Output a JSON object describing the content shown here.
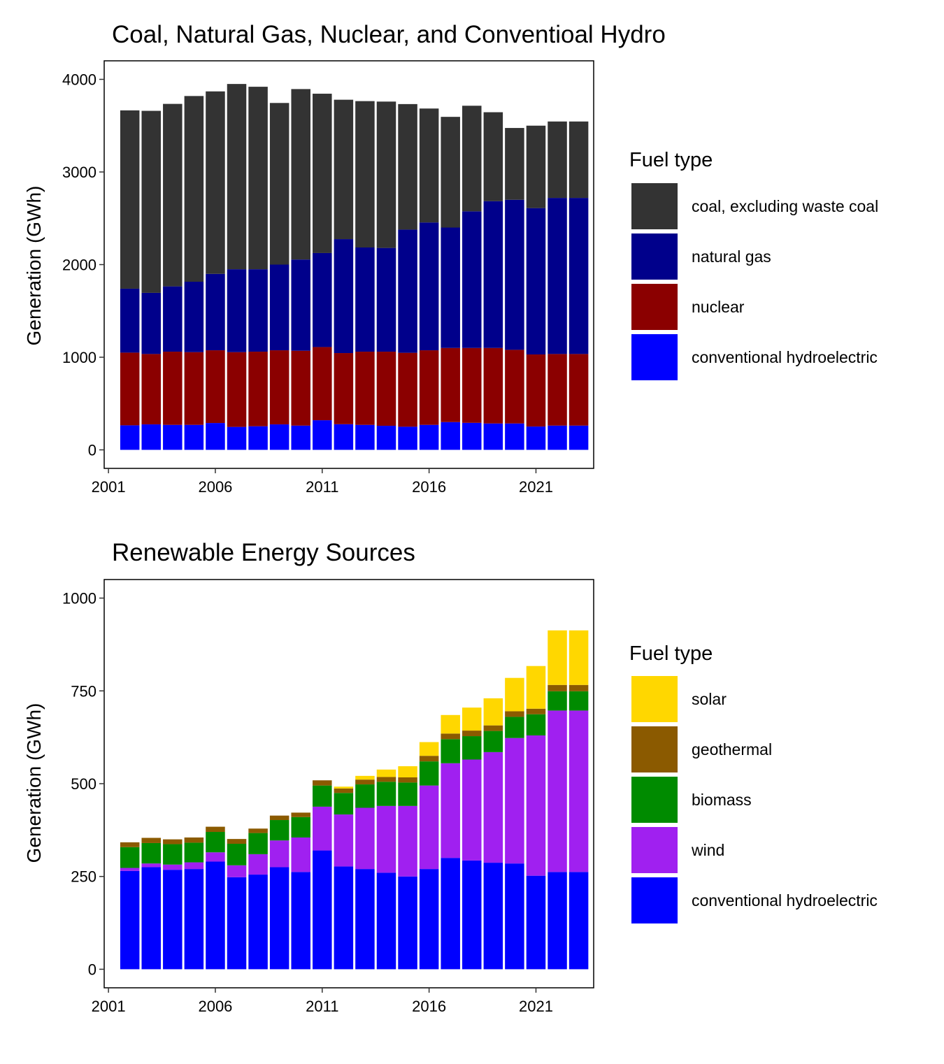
{
  "chart_data": [
    {
      "type": "bar",
      "stacked": true,
      "title": "Coal, Natural Gas, Nuclear, and Conventioal Hydro",
      "xlabel": "",
      "ylabel": "Generation (GWh)",
      "ylim": [
        -200,
        4200
      ],
      "xlim": [
        2000.8,
        2023.7
      ],
      "x": [
        2002,
        2003,
        2004,
        2005,
        2006,
        2007,
        2008,
        2009,
        2010,
        2011,
        2012,
        2013,
        2014,
        2015,
        2016,
        2017,
        2018,
        2019,
        2020,
        2021,
        2022,
        2023
      ],
      "x_ticks": [
        2001,
        2006,
        2011,
        2016,
        2021
      ],
      "x_tick_labels": [
        "2001",
        "2006",
        "2011",
        "2016",
        "2021"
      ],
      "y_ticks": [
        0,
        1000,
        2000,
        3000,
        4000
      ],
      "y_tick_labels": [
        "0",
        "1000",
        "2000",
        "3000",
        "4000"
      ],
      "grid": false,
      "legend_title": "Fuel type",
      "legend_position": "right",
      "stack_order": [
        "conventional hydroelectric",
        "nuclear",
        "natural gas",
        "coal, excluding waste coal"
      ],
      "legend_order": [
        "coal, excluding waste coal",
        "natural gas",
        "nuclear",
        "conventional hydroelectric"
      ],
      "series": [
        {
          "name": "conventional hydroelectric",
          "color": "#0000FF",
          "values": [
            265,
            275,
            270,
            270,
            290,
            248,
            255,
            275,
            262,
            320,
            277,
            270,
            260,
            250,
            270,
            300,
            292,
            285,
            285,
            252,
            262,
            262
          ]
        },
        {
          "name": "nuclear",
          "color": "#8B0000",
          "values": [
            785,
            760,
            790,
            785,
            785,
            807,
            805,
            800,
            808,
            790,
            768,
            790,
            800,
            798,
            805,
            800,
            808,
            815,
            795,
            778,
            773,
            773
          ]
        },
        {
          "name": "natural gas",
          "color": "#00008B",
          "values": [
            690,
            660,
            705,
            760,
            825,
            895,
            890,
            925,
            985,
            1015,
            1230,
            1125,
            1120,
            1330,
            1380,
            1300,
            1475,
            1585,
            1620,
            1580,
            1685,
            1685
          ]
        },
        {
          "name": "coal, excluding waste coal",
          "color": "#333333",
          "values": [
            1925,
            1965,
            1970,
            2005,
            1970,
            2000,
            1970,
            1745,
            1840,
            1720,
            1505,
            1580,
            1580,
            1355,
            1230,
            1195,
            1140,
            960,
            775,
            890,
            825,
            825
          ]
        }
      ]
    },
    {
      "type": "bar",
      "stacked": true,
      "title": "Renewable Energy Sources",
      "xlabel": "",
      "ylabel": "Generation (GWh)",
      "ylim": [
        -50,
        1050
      ],
      "xlim": [
        2000.8,
        2023.7
      ],
      "x": [
        2002,
        2003,
        2004,
        2005,
        2006,
        2007,
        2008,
        2009,
        2010,
        2011,
        2012,
        2013,
        2014,
        2015,
        2016,
        2017,
        2018,
        2019,
        2020,
        2021,
        2022,
        2023
      ],
      "x_ticks": [
        2001,
        2006,
        2011,
        2016,
        2021
      ],
      "x_tick_labels": [
        "2001",
        "2006",
        "2011",
        "2016",
        "2021"
      ],
      "y_ticks": [
        0,
        250,
        500,
        750,
        1000
      ],
      "y_tick_labels": [
        "0",
        "250",
        "500",
        "750",
        "1000"
      ],
      "grid": false,
      "legend_title": "Fuel type",
      "legend_position": "right",
      "stack_order": [
        "conventional hydroelectric",
        "wind",
        "biomass",
        "geothermal",
        "solar"
      ],
      "legend_order": [
        "solar",
        "geothermal",
        "biomass",
        "wind",
        "conventional hydroelectric"
      ],
      "series": [
        {
          "name": "conventional hydroelectric",
          "color": "#0000FF",
          "values": [
            265,
            275,
            268,
            270,
            290,
            248,
            255,
            275,
            262,
            320,
            277,
            270,
            260,
            250,
            270,
            300,
            293,
            287,
            285,
            252,
            262,
            262
          ]
        },
        {
          "name": "wind",
          "color": "#A020F0",
          "values": [
            8,
            10,
            14,
            18,
            25,
            32,
            55,
            72,
            93,
            118,
            140,
            165,
            180,
            190,
            225,
            255,
            272,
            298,
            338,
            378,
            435,
            435
          ]
        },
        {
          "name": "biomass",
          "color": "#008B00",
          "values": [
            56,
            55,
            55,
            53,
            55,
            58,
            57,
            55,
            55,
            57,
            58,
            63,
            65,
            63,
            65,
            65,
            63,
            57,
            57,
            57,
            52,
            52
          ]
        },
        {
          "name": "geothermal",
          "color": "#8B5A00",
          "values": [
            13,
            14,
            13,
            14,
            14,
            13,
            12,
            12,
            12,
            14,
            12,
            13,
            13,
            14,
            15,
            15,
            15,
            15,
            15,
            15,
            17,
            17
          ]
        },
        {
          "name": "solar",
          "color": "#FFD700",
          "values": [
            0,
            0,
            0,
            0,
            0,
            0,
            0,
            0,
            0,
            0,
            5,
            10,
            20,
            30,
            37,
            50,
            62,
            73,
            90,
            115,
            147,
            147
          ]
        }
      ]
    }
  ]
}
